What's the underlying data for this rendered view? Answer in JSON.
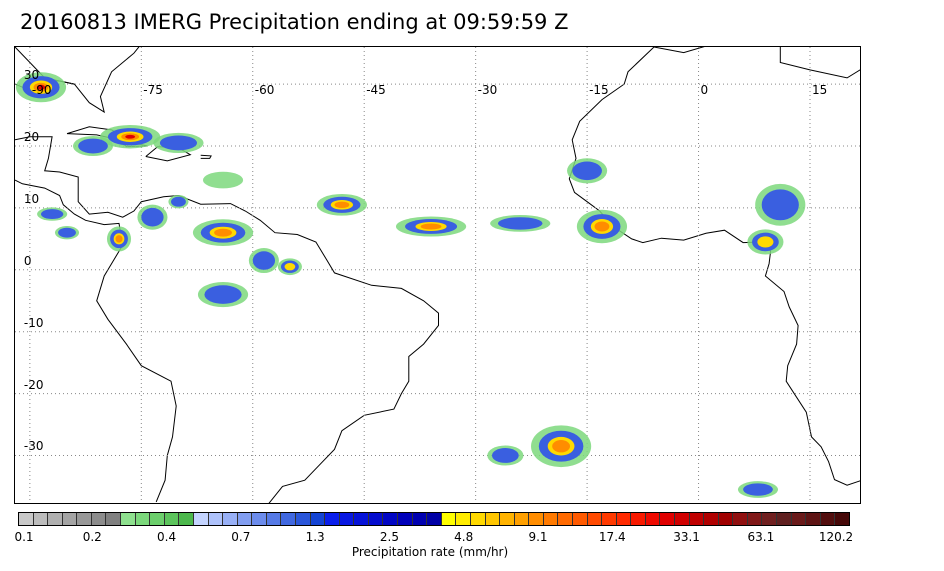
{
  "title": "20160813 IMERG Precipitation ending at 09:59:59 Z",
  "map": {
    "lon_range": [
      -92,
      22
    ],
    "lat_range": [
      36,
      -38
    ],
    "lon_labels": [
      "-90",
      "-75",
      "-60",
      "-45",
      "-30",
      "-15",
      "0",
      "15"
    ],
    "lat_labels": [
      "30",
      "20",
      "10",
      "0",
      "-10",
      "-20",
      "-30"
    ],
    "grid_style": "dotted",
    "precip_areas": [
      {
        "lon": -88.5,
        "lat": 29.5,
        "rx": 2.5,
        "ry": 1.8,
        "max_class": "red"
      },
      {
        "lon": -76.5,
        "lat": 21.5,
        "rx": 3.0,
        "ry": 1.4,
        "max_class": "red"
      },
      {
        "lon": -81.5,
        "lat": 20.0,
        "rx": 2.0,
        "ry": 1.2,
        "max_class": "blue"
      },
      {
        "lon": -70.0,
        "lat": 20.5,
        "rx": 2.5,
        "ry": 1.2,
        "max_class": "blue"
      },
      {
        "lon": -64.0,
        "lat": 14.5,
        "rx": 2.0,
        "ry": 1.0,
        "max_class": "green"
      },
      {
        "lon": -73.5,
        "lat": 8.5,
        "rx": 1.5,
        "ry": 1.5,
        "max_class": "blue"
      },
      {
        "lon": -78.0,
        "lat": 5.0,
        "rx": 1.2,
        "ry": 1.5,
        "max_class": "orange"
      },
      {
        "lon": -64.0,
        "lat": 6.0,
        "rx": 3.0,
        "ry": 1.6,
        "max_class": "orange"
      },
      {
        "lon": -58.5,
        "lat": 1.5,
        "rx": 1.5,
        "ry": 1.5,
        "max_class": "blue"
      },
      {
        "lon": -55.0,
        "lat": 0.5,
        "rx": 1.2,
        "ry": 1.0,
        "max_class": "yellow"
      },
      {
        "lon": -64.0,
        "lat": -4.0,
        "rx": 2.5,
        "ry": 1.5,
        "max_class": "blue"
      },
      {
        "lon": -48.0,
        "lat": 10.5,
        "rx": 2.5,
        "ry": 1.3,
        "max_class": "orange"
      },
      {
        "lon": -36.0,
        "lat": 7.0,
        "rx": 3.5,
        "ry": 1.2,
        "max_class": "orange"
      },
      {
        "lon": -24.0,
        "lat": 7.5,
        "rx": 3.0,
        "ry": 1.0,
        "max_class": "blue"
      },
      {
        "lon": -13.0,
        "lat": 7.0,
        "rx": 2.5,
        "ry": 2.0,
        "max_class": "orange"
      },
      {
        "lon": -15.0,
        "lat": 16.0,
        "rx": 2.0,
        "ry": 1.5,
        "max_class": "blue"
      },
      {
        "lon": 11.0,
        "lat": 10.5,
        "rx": 2.5,
        "ry": 2.5,
        "max_class": "blue"
      },
      {
        "lon": 9.0,
        "lat": 4.5,
        "rx": 1.8,
        "ry": 1.5,
        "max_class": "yellow"
      },
      {
        "lon": -18.5,
        "lat": -28.5,
        "rx": 3.0,
        "ry": 2.5,
        "max_class": "orange"
      },
      {
        "lon": -26.0,
        "lat": -30.0,
        "rx": 1.8,
        "ry": 1.2,
        "max_class": "blue"
      },
      {
        "lon": 8.0,
        "lat": -35.5,
        "rx": 2.0,
        "ry": 1.0,
        "max_class": "blue"
      },
      {
        "lon": -87.0,
        "lat": 9.0,
        "rx": 1.5,
        "ry": 0.8,
        "max_class": "blue"
      },
      {
        "lon": -70.0,
        "lat": 11.0,
        "rx": 1.0,
        "ry": 0.8,
        "max_class": "blue"
      },
      {
        "lon": -85.0,
        "lat": 6.0,
        "rx": 1.2,
        "ry": 0.8,
        "max_class": "blue"
      }
    ]
  },
  "colorbar": {
    "label": "Precipitation rate (mm/hr)",
    "colors": [
      "#c8c8c8",
      "#bcbcbc",
      "#b0b0b0",
      "#a4a4a4",
      "#989898",
      "#8c8c8c",
      "#808080",
      "#8ee08e",
      "#7cd87c",
      "#6ccf6c",
      "#5cc45c",
      "#4cb84c",
      "#c4d4ff",
      "#aec2fb",
      "#98b0f6",
      "#829ef1",
      "#6c8cec",
      "#567ae6",
      "#4068e0",
      "#2a56da",
      "#1444d4",
      "#0a1eeb",
      "#0818e2",
      "#0612d8",
      "#040cce",
      "#0206c4",
      "#0000ba",
      "#0000b0",
      "#0000a6",
      "#ffff00",
      "#ffec00",
      "#ffd900",
      "#ffc600",
      "#ffb300",
      "#ffa000",
      "#ff8d00",
      "#ff7a00",
      "#ff6a00",
      "#ff5a00",
      "#ff4a00",
      "#ff3a00",
      "#ff2a00",
      "#f81a00",
      "#ee0a00",
      "#e00000",
      "#d00000",
      "#c00000",
      "#b00000",
      "#a00000",
      "#901010",
      "#801818",
      "#702020",
      "#602020",
      "#6a1a1a",
      "#5e1414",
      "#520e0e",
      "#460808"
    ],
    "tick_labels": [
      "0.1",
      "0.2",
      "0.4",
      "0.7",
      "1.3",
      "2.5",
      "4.8",
      "9.1",
      "17.4",
      "33.1",
      "63.1",
      "120.2"
    ],
    "tick_box_index": [
      0,
      5,
      10,
      15,
      20,
      25,
      30,
      35,
      40,
      45,
      50,
      56
    ]
  }
}
